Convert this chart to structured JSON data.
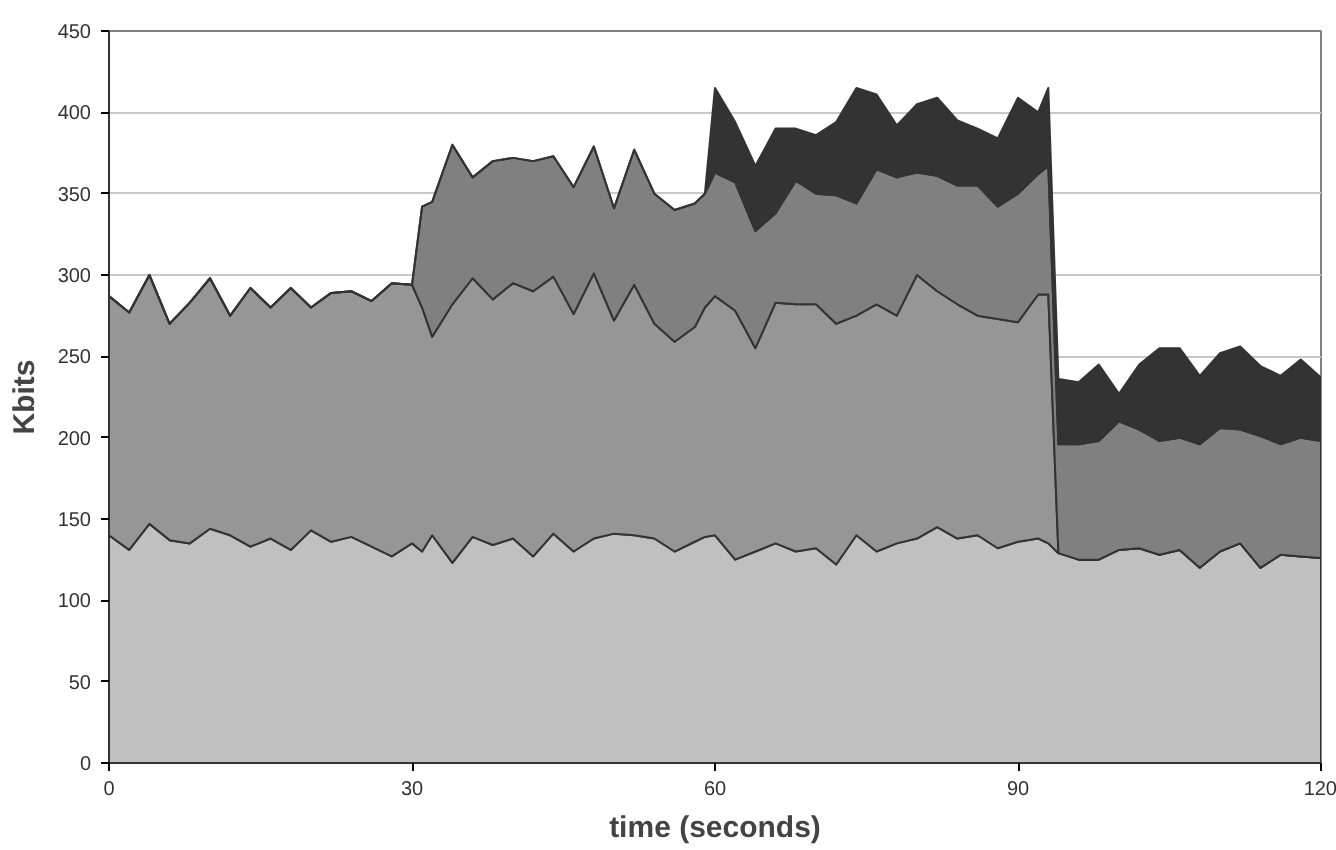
{
  "chart_data": {
    "type": "area",
    "stacked": true,
    "xlabel": "time (seconds)",
    "ylabel": "Kbits",
    "x": [
      0,
      2,
      4,
      6,
      8,
      10,
      12,
      14,
      16,
      18,
      20,
      22,
      24,
      26,
      28,
      30,
      31,
      32,
      34,
      36,
      38,
      40,
      42,
      44,
      46,
      48,
      50,
      52,
      54,
      56,
      58,
      59,
      60,
      62,
      64,
      66,
      68,
      70,
      72,
      74,
      76,
      78,
      80,
      82,
      84,
      86,
      88,
      90,
      92,
      93,
      94,
      96,
      98,
      100,
      102,
      104,
      106,
      108,
      110,
      112,
      114,
      116,
      118,
      120
    ],
    "xlim": [
      0,
      120
    ],
    "xticks": [
      0,
      30,
      60,
      90,
      120
    ],
    "ylim": [
      0,
      450
    ],
    "yticks": [
      0,
      50,
      100,
      150,
      200,
      250,
      300,
      350,
      400,
      450
    ],
    "grid": "y",
    "series": [
      {
        "color": "#c0c0c0",
        "values": [
          140,
          131,
          147,
          137,
          135,
          144,
          140,
          133,
          138,
          131,
          143,
          136,
          139,
          133,
          127,
          135,
          130,
          140,
          123,
          139,
          134,
          138,
          127,
          141,
          130,
          138,
          141,
          140,
          138,
          130,
          136,
          139,
          140,
          125,
          130,
          135,
          130,
          132,
          122,
          140,
          130,
          135,
          138,
          145,
          138,
          140,
          132,
          136,
          138,
          135,
          129,
          125,
          125,
          131,
          132,
          128,
          131,
          120,
          130,
          135,
          120,
          128,
          127,
          126
        ]
      },
      {
        "color": "#969696",
        "values": [
          147,
          146,
          153,
          133,
          148,
          154,
          135,
          159,
          142,
          161,
          137,
          153,
          151,
          151,
          168,
          159,
          150,
          122,
          159,
          159,
          151,
          157,
          163,
          158,
          146,
          163,
          131,
          154,
          132,
          129,
          132,
          141,
          147,
          153,
          125,
          148,
          152,
          150,
          148,
          135,
          152,
          140,
          162,
          145,
          144,
          135,
          141,
          135,
          150,
          153,
          0,
          0,
          0,
          0,
          0,
          0,
          0,
          0,
          0,
          0,
          0,
          0,
          0,
          0
        ]
      },
      {
        "color": "#808080",
        "values": [
          0,
          0,
          0,
          0,
          0,
          0,
          0,
          0,
          0,
          0,
          0,
          0,
          0,
          0,
          0,
          0,
          62,
          83,
          98,
          62,
          85,
          77,
          80,
          74,
          78,
          78,
          69,
          83,
          80,
          81,
          76,
          70,
          76,
          79,
          72,
          55,
          76,
          68,
          79,
          69,
          83,
          85,
          63,
          71,
          73,
          80,
          69,
          79,
          74,
          79,
          67,
          71,
          73,
          79,
          73,
          70,
          69,
          76,
          76,
          70,
          81,
          68,
          73,
          72
        ]
      },
      {
        "color": "#333333",
        "values": [
          0,
          0,
          0,
          0,
          0,
          0,
          0,
          0,
          0,
          0,
          0,
          0,
          0,
          0,
          0,
          0,
          0,
          0,
          0,
          0,
          0,
          0,
          0,
          0,
          0,
          0,
          0,
          0,
          0,
          0,
          0,
          0,
          52,
          37,
          40,
          52,
          32,
          36,
          45,
          71,
          46,
          32,
          42,
          48,
          40,
          35,
          42,
          59,
          38,
          48,
          40,
          38,
          47,
          17,
          40,
          57,
          55,
          42,
          46,
          51,
          43,
          42,
          48,
          39
        ]
      }
    ]
  }
}
